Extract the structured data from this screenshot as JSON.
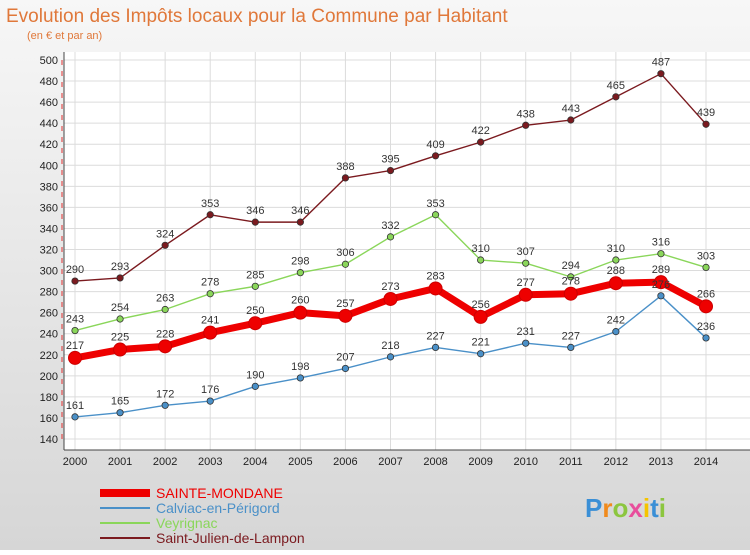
{
  "chart_data": {
    "type": "line",
    "title": "Evolution des Impôts locaux pour la Commune par Habitant",
    "subtitle": "(en € et par an)",
    "xlabel": "",
    "ylabel": "",
    "x": [
      "2000",
      "2001",
      "2002",
      "2003",
      "2004",
      "2005",
      "2006",
      "2007",
      "2008",
      "2009",
      "2010",
      "2011",
      "2012",
      "2013",
      "2014"
    ],
    "ylim": [
      140,
      500
    ],
    "yticks": [
      140,
      160,
      180,
      200,
      220,
      240,
      260,
      280,
      300,
      320,
      340,
      360,
      380,
      400,
      420,
      440,
      460,
      480,
      500
    ],
    "grid": true,
    "legend_position": "bottom-left",
    "series": [
      {
        "name": "Saint-Julien-de-Lampon",
        "color": "#7b1a1f",
        "values": [
          290,
          293,
          324,
          353,
          346,
          346,
          388,
          395,
          409,
          422,
          438,
          443,
          465,
          487,
          439
        ],
        "labels": [
          "290",
          "293",
          "324",
          "353",
          "346",
          "346",
          "388",
          "395",
          "409",
          "422",
          "438",
          "443",
          "465",
          "487",
          "439"
        ]
      },
      {
        "name": "Veyrignac",
        "color": "#8ad65a",
        "values": [
          243,
          254,
          263,
          278,
          285,
          298,
          306,
          332,
          353,
          310,
          307,
          294,
          310,
          316,
          303
        ],
        "labels": [
          "243",
          "254",
          "263",
          "278",
          "285",
          "298",
          "306",
          "332",
          "353",
          "310",
          "307",
          "294",
          "310",
          "316",
          "303"
        ]
      },
      {
        "name": "Calviac-en-Périgord",
        "color": "#4a90c8",
        "values": [
          161,
          165,
          172,
          176,
          190,
          198,
          207,
          218,
          227,
          221,
          231,
          227,
          242,
          276,
          236
        ],
        "labels": [
          "161",
          "165",
          "172",
          "176",
          "190",
          "198",
          "207",
          "218",
          "227",
          "221",
          "231",
          "227",
          "242",
          "276",
          "236"
        ]
      },
      {
        "name": "SAINTE-MONDANE",
        "color": "#ee0000",
        "values": [
          217,
          225,
          228,
          241,
          250,
          260,
          257,
          273,
          283,
          256,
          277,
          278,
          288,
          289,
          266
        ],
        "labels": [
          "217",
          "225",
          "228",
          "241",
          "250",
          "260",
          "257",
          "273",
          "283",
          "256",
          "277",
          "278",
          "288",
          "289",
          "266"
        ]
      }
    ]
  },
  "legend_items": [
    {
      "label": "SAINTE-MONDANE",
      "color": "#ee0000"
    },
    {
      "label": "Calviac-en-Périgord",
      "color": "#4a90c8"
    },
    {
      "label": "Veyrignac",
      "color": "#8ad65a"
    },
    {
      "label": "Saint-Julien-de-Lampon",
      "color": "#7b1a1f"
    }
  ],
  "brand": {
    "text": "Proxiti",
    "letters": [
      "P",
      "r",
      "o",
      "x",
      "i",
      "t",
      "i"
    ],
    "colors": [
      "#3a8fd6",
      "#f08a1c",
      "#8cc63f",
      "#e84e9c",
      "#f5c400",
      "#3a8fd6",
      "#8cc63f"
    ]
  }
}
